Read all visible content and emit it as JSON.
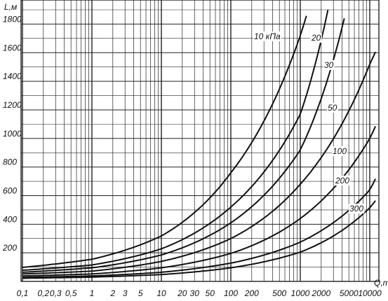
{
  "chart_data": {
    "type": "line",
    "title": "",
    "xlabel": "Q,т",
    "ylabel": "L,м",
    "x_scale": "log",
    "xlim": [
      0.1,
      15000
    ],
    "ylim": [
      0,
      1900
    ],
    "grid": true,
    "x_tick_labels": [
      "0,1",
      "0,2",
      "0,3",
      "0,5",
      "1",
      "2",
      "3",
      "5",
      "10",
      "20",
      "30",
      "50",
      "100",
      "200",
      "500",
      "1000",
      "2000",
      "5000",
      "10000"
    ],
    "x_tick_values": [
      0.1,
      0.2,
      0.3,
      0.5,
      1,
      2,
      3,
      5,
      10,
      20,
      30,
      50,
      100,
      200,
      500,
      1000,
      2000,
      5000,
      10000
    ],
    "y_tick_labels": [
      "200",
      "400",
      "600",
      "800",
      "1000",
      "1200",
      "1400",
      "1600",
      "1800"
    ],
    "y_tick_values": [
      200,
      400,
      600,
      800,
      1000,
      1200,
      1400,
      1600,
      1800
    ],
    "series": [
      {
        "name": "10 кПа",
        "x": [
          0.1,
          1,
          10,
          100,
          1000,
          1300
        ],
        "y": [
          98,
          155,
          318,
          760,
          1720,
          1900
        ]
      },
      {
        "name": "20",
        "x": [
          0.1,
          1,
          10,
          100,
          1000,
          2500
        ],
        "y": [
          78,
          115,
          228,
          520,
          1170,
          1900
        ]
      },
      {
        "name": "30",
        "x": [
          0.1,
          1,
          10,
          100,
          1000,
          4600
        ],
        "y": [
          64,
          95,
          185,
          410,
          920,
          1900
        ]
      },
      {
        "name": "50",
        "x": [
          0.1,
          1,
          10,
          100,
          1000,
          10000,
          13000
        ],
        "y": [
          52,
          72,
          140,
          300,
          680,
          1520,
          1640
        ]
      },
      {
        "name": "100",
        "x": [
          0.1,
          1,
          10,
          100,
          1000,
          10000,
          13000
        ],
        "y": [
          38,
          52,
          95,
          196,
          440,
          1000,
          1120
        ]
      },
      {
        "name": "200",
        "x": [
          0.1,
          1,
          10,
          100,
          1000,
          10000,
          13000
        ],
        "y": [
          28,
          38,
          64,
          128,
          275,
          640,
          750
        ]
      },
      {
        "name": "300",
        "x": [
          0.1,
          1,
          10,
          100,
          1000,
          10000,
          13000
        ],
        "y": [
          22,
          30,
          48,
          95,
          205,
          515,
          585
        ]
      }
    ]
  }
}
